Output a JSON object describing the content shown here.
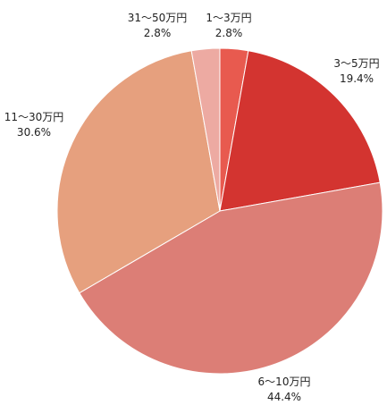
{
  "chart_data": {
    "type": "pie",
    "title": "",
    "start_angle_deg": 0,
    "direction": "clockwise",
    "slices": [
      {
        "label": "1〜3万円",
        "percent_label": "2.8%",
        "value": 2.8,
        "color": "#e85a4f"
      },
      {
        "label": "3〜5万円",
        "percent_label": "19.4%",
        "value": 19.4,
        "color": "#d33430"
      },
      {
        "label": "6〜10万円",
        "percent_label": "44.4%",
        "value": 44.4,
        "color": "#dc7e76"
      },
      {
        "label": "11〜30万円",
        "percent_label": "30.6%",
        "value": 30.6,
        "color": "#e6a07e"
      },
      {
        "label": "31〜50万円",
        "percent_label": "2.8%",
        "value": 2.8,
        "color": "#edaaa2"
      }
    ]
  }
}
